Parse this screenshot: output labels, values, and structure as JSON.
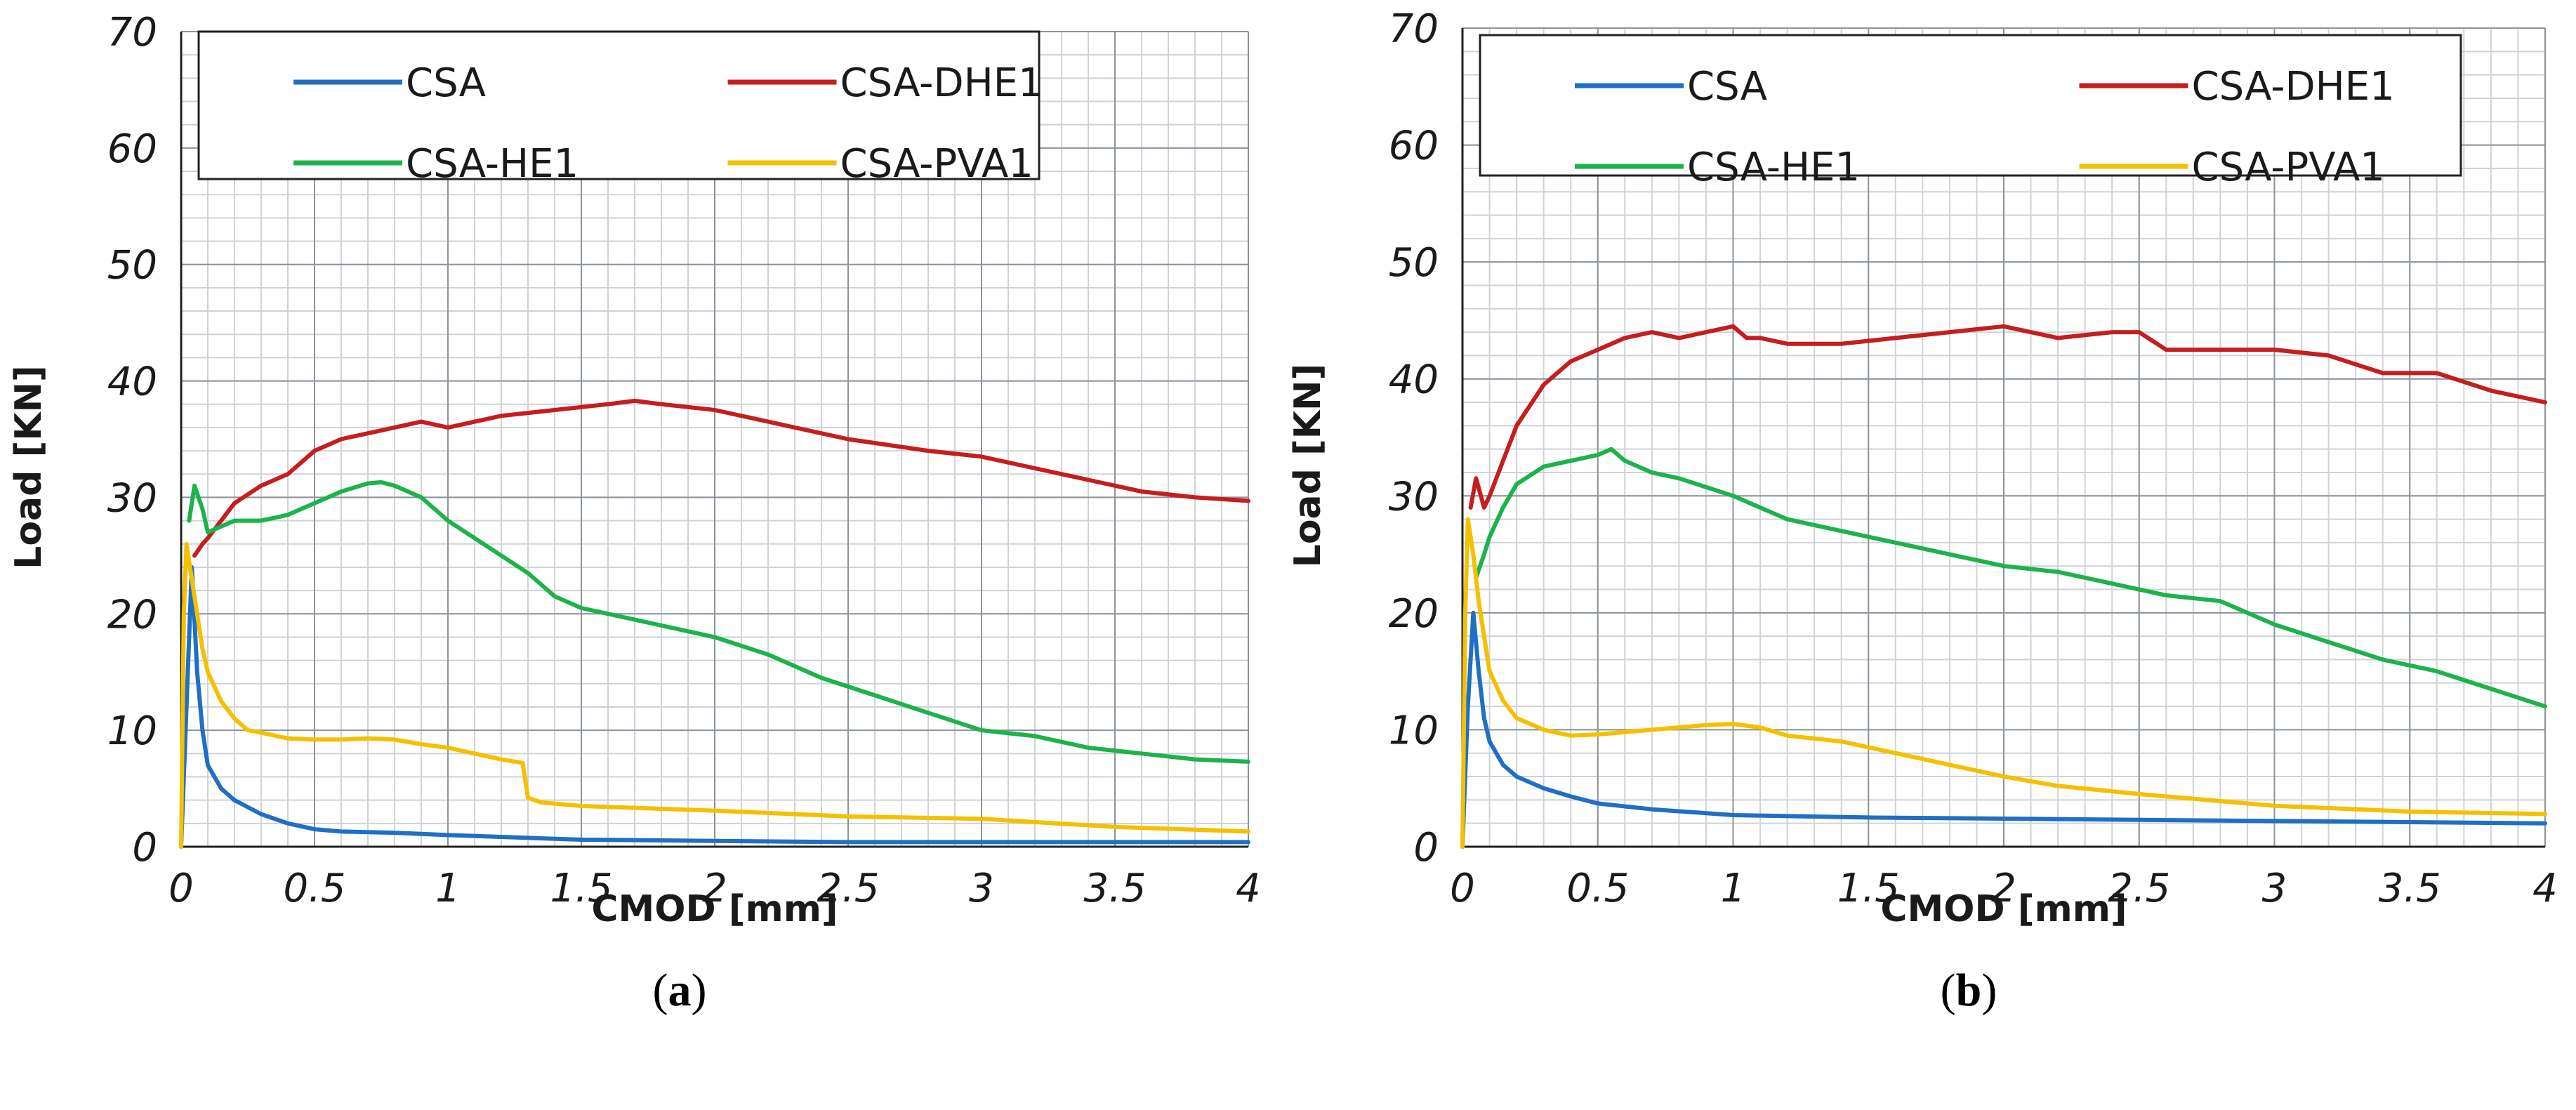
{
  "chart_data": [
    {
      "type": "line",
      "panel_label": "a",
      "xlabel": "CMOD [mm]",
      "ylabel": "Load [KN]",
      "xlim": [
        0,
        4
      ],
      "ylim": [
        0,
        70
      ],
      "xticks": [
        "0",
        "0.5",
        "1",
        "1.5",
        "2",
        "2.5",
        "3",
        "3.5",
        "4"
      ],
      "yticks": [
        "0",
        "10",
        "20",
        "30",
        "40",
        "50",
        "60",
        "70"
      ],
      "grid": true,
      "legend_placement": "top",
      "series": [
        {
          "name": "CSA",
          "color": "#1f6fc5",
          "x": [
            0,
            0.02,
            0.04,
            0.06,
            0.08,
            0.1,
            0.15,
            0.2,
            0.3,
            0.4,
            0.5,
            0.6,
            0.8,
            1.0,
            1.5,
            2.0,
            2.5,
            3.0,
            3.5,
            4.0
          ],
          "y": [
            0,
            12,
            24,
            15,
            10,
            7,
            5,
            4,
            2.8,
            2,
            1.5,
            1.3,
            1.2,
            1.0,
            0.6,
            0.5,
            0.4,
            0.4,
            0.4,
            0.4
          ]
        },
        {
          "name": "CSA-DHE1",
          "color": "#c41e1e",
          "x": [
            0.05,
            0.08,
            0.1,
            0.15,
            0.2,
            0.3,
            0.4,
            0.5,
            0.6,
            0.7,
            0.8,
            0.9,
            1.0,
            1.2,
            1.4,
            1.6,
            1.7,
            1.8,
            2.0,
            2.2,
            2.5,
            2.8,
            3.0,
            3.2,
            3.4,
            3.6,
            3.8,
            4.0
          ],
          "y": [
            25,
            26,
            26.5,
            28,
            29.5,
            31,
            32,
            34,
            35,
            35.5,
            36,
            36.5,
            36,
            37,
            37.5,
            38,
            38.3,
            38,
            37.5,
            36.5,
            35,
            34,
            33.5,
            32.5,
            31.5,
            30.5,
            30,
            29.7
          ]
        },
        {
          "name": "CSA-HE1",
          "color": "#1db34a",
          "x": [
            0.03,
            0.05,
            0.08,
            0.1,
            0.15,
            0.2,
            0.3,
            0.4,
            0.5,
            0.6,
            0.7,
            0.75,
            0.8,
            0.9,
            1.0,
            1.1,
            1.2,
            1.3,
            1.4,
            1.5,
            1.7,
            1.9,
            2.0,
            2.2,
            2.4,
            2.6,
            2.8,
            3.0,
            3.2,
            3.4,
            3.6,
            3.8,
            4.0
          ],
          "y": [
            28,
            31,
            29,
            27,
            27.5,
            28,
            28,
            28.5,
            29.5,
            30.5,
            31.2,
            31.3,
            31,
            30,
            28,
            26.5,
            25,
            23.5,
            21.5,
            20.5,
            19.5,
            18.5,
            18,
            16.5,
            14.5,
            13,
            11.5,
            10,
            9.5,
            8.5,
            8,
            7.5,
            7.3
          ]
        },
        {
          "name": "CSA-PVA1",
          "color": "#f5c000",
          "x": [
            0,
            0.01,
            0.02,
            0.04,
            0.06,
            0.08,
            0.1,
            0.15,
            0.2,
            0.25,
            0.3,
            0.4,
            0.5,
            0.6,
            0.7,
            0.8,
            0.9,
            1.0,
            1.1,
            1.2,
            1.28,
            1.3,
            1.35,
            1.5,
            2.0,
            2.5,
            3.0,
            3.5,
            4.0
          ],
          "y": [
            0,
            20,
            26,
            23,
            20,
            17,
            15,
            12.5,
            11,
            10,
            9.8,
            9.3,
            9.2,
            9.2,
            9.3,
            9.2,
            8.8,
            8.5,
            8,
            7.5,
            7.2,
            4.2,
            3.8,
            3.5,
            3.1,
            2.6,
            2.4,
            1.7,
            1.3
          ]
        }
      ]
    },
    {
      "type": "line",
      "panel_label": "b",
      "xlabel": "CMOD [mm]",
      "ylabel": "Load [KN]",
      "xlim": [
        0,
        4
      ],
      "ylim": [
        0,
        70
      ],
      "xticks": [
        "0",
        "0.5",
        "1",
        "1.5",
        "2",
        "2.5",
        "3",
        "3.5",
        "4"
      ],
      "yticks": [
        "0",
        "10",
        "20",
        "30",
        "40",
        "50",
        "60",
        "70"
      ],
      "grid": true,
      "legend_placement": "top",
      "series": [
        {
          "name": "CSA",
          "color": "#1f6fc5",
          "x": [
            0,
            0.02,
            0.04,
            0.06,
            0.08,
            0.1,
            0.15,
            0.2,
            0.3,
            0.4,
            0.5,
            0.7,
            1.0,
            1.5,
            2.0,
            2.5,
            3.0,
            3.5,
            4.0
          ],
          "y": [
            0,
            12,
            20,
            15,
            11,
            9,
            7,
            6,
            5,
            4.3,
            3.7,
            3.2,
            2.7,
            2.5,
            2.4,
            2.3,
            2.2,
            2.1,
            2.0
          ]
        },
        {
          "name": "CSA-DHE1",
          "color": "#c41e1e",
          "x": [
            0.03,
            0.05,
            0.08,
            0.1,
            0.15,
            0.2,
            0.3,
            0.4,
            0.5,
            0.6,
            0.7,
            0.8,
            0.9,
            1.0,
            1.05,
            1.1,
            1.2,
            1.4,
            1.6,
            1.8,
            2.0,
            2.2,
            2.4,
            2.5,
            2.6,
            2.8,
            3.0,
            3.2,
            3.4,
            3.6,
            3.8,
            4.0
          ],
          "y": [
            29,
            31.5,
            29,
            30,
            33,
            36,
            39.5,
            41.5,
            42.5,
            43.5,
            44,
            43.5,
            44,
            44.5,
            43.5,
            43.5,
            43,
            43,
            43.5,
            44,
            44.5,
            43.5,
            44,
            44,
            42.5,
            42.5,
            42.5,
            42,
            40.5,
            40.5,
            39,
            38
          ]
        },
        {
          "name": "CSA-HE1",
          "color": "#1db34a",
          "x": [
            0.05,
            0.08,
            0.1,
            0.15,
            0.2,
            0.3,
            0.4,
            0.5,
            0.55,
            0.6,
            0.7,
            0.8,
            1.0,
            1.2,
            1.4,
            1.6,
            1.8,
            2.0,
            2.2,
            2.4,
            2.6,
            2.8,
            3.0,
            3.2,
            3.4,
            3.6,
            3.8,
            4.0
          ],
          "y": [
            23,
            25,
            26.5,
            29,
            31,
            32.5,
            33,
            33.5,
            34,
            33,
            32,
            31.5,
            30,
            28,
            27,
            26,
            25,
            24,
            23.5,
            22.5,
            21.5,
            21,
            19,
            17.5,
            16,
            15,
            13.5,
            12
          ]
        },
        {
          "name": "CSA-PVA1",
          "color": "#f5c000",
          "x": [
            0,
            0.01,
            0.02,
            0.04,
            0.06,
            0.08,
            0.1,
            0.15,
            0.2,
            0.3,
            0.4,
            0.5,
            0.6,
            0.7,
            0.8,
            0.9,
            1.0,
            1.1,
            1.2,
            1.4,
            1.6,
            1.8,
            2.0,
            2.2,
            2.5,
            3.0,
            3.5,
            4.0
          ],
          "y": [
            0,
            20,
            28,
            25,
            21,
            18,
            15,
            12.5,
            11,
            10,
            9.5,
            9.6,
            9.8,
            10,
            10.2,
            10.4,
            10.5,
            10.2,
            9.5,
            9,
            8,
            7,
            6,
            5.2,
            4.5,
            3.5,
            3,
            2.8
          ]
        }
      ]
    }
  ]
}
